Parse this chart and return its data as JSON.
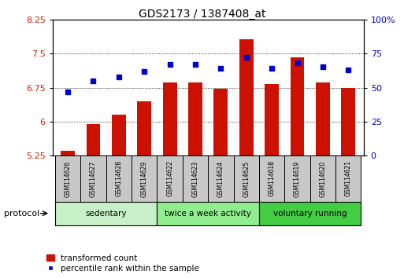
{
  "title": "GDS2173 / 1387408_at",
  "samples": [
    "GSM114626",
    "GSM114627",
    "GSM114628",
    "GSM114629",
    "GSM114622",
    "GSM114623",
    "GSM114624",
    "GSM114625",
    "GSM114618",
    "GSM114619",
    "GSM114620",
    "GSM114621"
  ],
  "bar_values": [
    5.35,
    5.95,
    6.15,
    6.45,
    6.87,
    6.87,
    6.72,
    7.82,
    6.82,
    7.42,
    6.87,
    6.75
  ],
  "percentile_values": [
    47,
    55,
    58,
    62,
    67,
    67,
    64,
    72,
    64,
    68,
    65,
    63
  ],
  "groups": [
    {
      "label": "sedentary",
      "start": 0,
      "end": 4,
      "color": "#c8f0c8"
    },
    {
      "label": "twice a week activity",
      "start": 4,
      "end": 8,
      "color": "#90ee90"
    },
    {
      "label": "voluntary running",
      "start": 8,
      "end": 12,
      "color": "#44cc44"
    }
  ],
  "ylim_left": [
    5.25,
    8.25
  ],
  "ylim_right": [
    0,
    100
  ],
  "yticks_left": [
    5.25,
    6.0,
    6.75,
    7.5,
    8.25
  ],
  "yticks_right": [
    0,
    25,
    50,
    75,
    100
  ],
  "ytick_labels_left": [
    "5.25",
    "6",
    "6.75",
    "7.5",
    "8.25"
  ],
  "ytick_labels_right": [
    "0",
    "25",
    "50",
    "75",
    "100%"
  ],
  "bar_color": "#cc1100",
  "dot_color": "#0000cc",
  "bar_width": 0.55,
  "protocol_label": "protocol",
  "legend_bar_label": "transformed count",
  "legend_dot_label": "percentile rank within the sample",
  "left_axis_color": "#cc2200",
  "right_axis_color": "#0000cc",
  "grid_color": "#000000",
  "background_color": "#ffffff",
  "plot_bg_color": "#ffffff",
  "sample_box_color": "#c8c8c8"
}
